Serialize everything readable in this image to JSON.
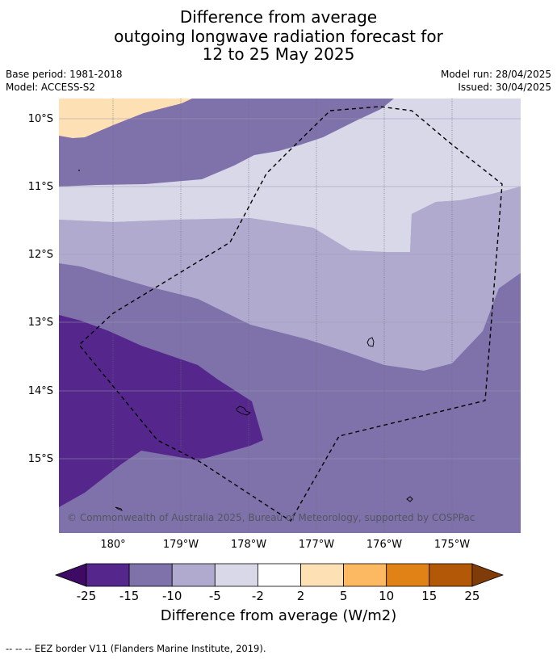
{
  "title": {
    "line1": "Difference from average",
    "line2": "outgoing longwave radiation forecast for",
    "line3": "12 to 25 May 2025"
  },
  "meta": {
    "base_period": "Base period: 1981-2018",
    "model": "Model: ACCESS-S2",
    "model_run": "Model run: 28/04/2025",
    "issued": "Issued: 30/04/2025"
  },
  "map": {
    "lat_labels": [
      "10°S",
      "11°S",
      "12°S",
      "13°S",
      "14°S",
      "15°S"
    ],
    "lon_labels": [
      "180°",
      "179°W",
      "178°W",
      "177°W",
      "176°W",
      "175°W"
    ],
    "copyright": "© Commonwealth of Australia 2025, Bureau of Meteorology, supported by COSPPac",
    "eez_label": "EEZ border"
  },
  "colorbar": {
    "title": "Difference from average (W/m2)",
    "ticks": [
      "-25",
      "-15",
      "-10",
      "-5",
      "-2",
      "2",
      "5",
      "10",
      "15",
      "25"
    ],
    "colors": [
      "#3f0a64",
      "#55278c",
      "#7f72ab",
      "#b1aacf",
      "#d8d8e9",
      "#ffffff",
      "#fee0b5",
      "#fdb862",
      "#e08216",
      "#b35806",
      "#7f3b08"
    ]
  },
  "footer": "--  --  -- EEZ border V11 (Flanders Marine Institute, 2019)."
}
